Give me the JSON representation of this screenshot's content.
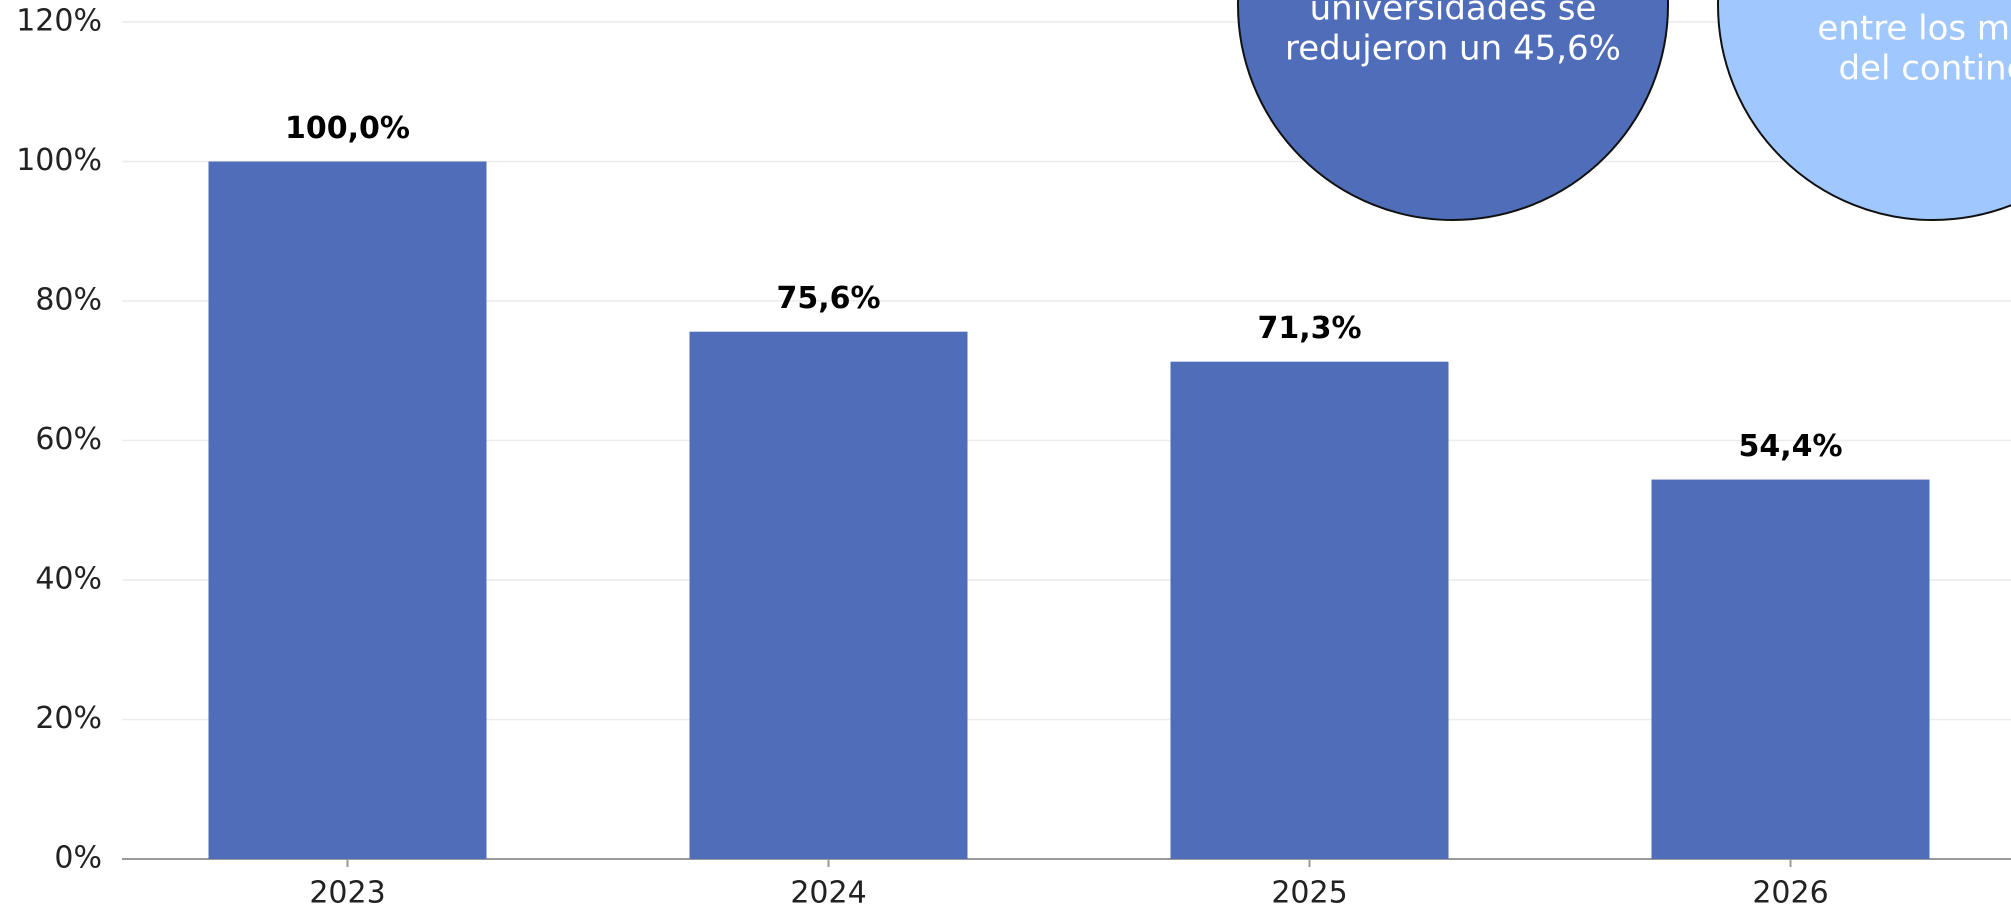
{
  "chart_data": {
    "type": "bar",
    "categories": [
      "2023",
      "2024",
      "2025",
      "2026"
    ],
    "values": [
      100,
      75.6,
      71.3,
      54.4
    ],
    "value_labels": [
      "100,0%",
      "75,6%",
      "71,3%",
      "54,4%"
    ],
    "color": "#4f6db8",
    "ylim": [
      0,
      120
    ],
    "yticks": [
      {
        "value": 0,
        "label": "0%"
      },
      {
        "value": 20,
        "label": "20%"
      },
      {
        "value": 40,
        "label": "40%"
      },
      {
        "value": 60,
        "label": "60%"
      },
      {
        "value": 80,
        "label": "80%"
      },
      {
        "value": 100,
        "label": "100%"
      },
      {
        "value": 120,
        "label": "120%"
      }
    ],
    "grid": true,
    "annotations": [
      {
        "lines": [
          "universidades se",
          "redujeron un 45,6%"
        ],
        "color": "#4f6db8"
      },
      {
        "lines": [
          "entre los más",
          "del contine"
        ],
        "color": "#a0c8ff"
      }
    ]
  }
}
